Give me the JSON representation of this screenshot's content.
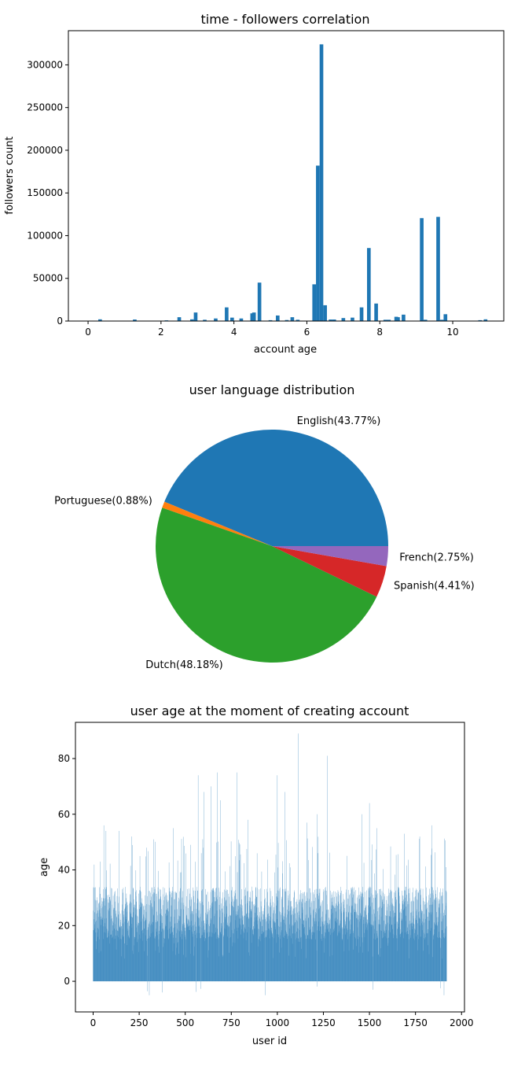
{
  "colors": {
    "bar": "#1f77b4",
    "axis": "#000000",
    "background": "#ffffff"
  },
  "chart_data": [
    {
      "type": "bar",
      "title": "time - followers correlation",
      "xlabel": "account age",
      "ylabel": "followers count",
      "xlim": [
        -0.54,
        11.4
      ],
      "ylim": [
        0,
        340000
      ],
      "xticks": [
        0,
        2,
        4,
        6,
        8,
        10
      ],
      "yticks": [
        0,
        50000,
        100000,
        150000,
        200000,
        250000,
        300000
      ],
      "bar_width": 0.1,
      "x": [
        0.33,
        1.28,
        2.15,
        2.5,
        2.85,
        2.95,
        3.2,
        3.5,
        3.8,
        3.95,
        4.2,
        4.5,
        4.55,
        4.7,
        5.0,
        5.2,
        5.45,
        5.6,
        5.75,
        6.2,
        6.3,
        6.4,
        6.5,
        6.65,
        6.75,
        7.0,
        7.25,
        7.5,
        7.7,
        7.9,
        8.15,
        8.25,
        8.45,
        8.5,
        8.65,
        9.15,
        9.25,
        9.6,
        9.7,
        9.8,
        10.75,
        10.9
      ],
      "values": [
        2000,
        1800,
        800,
        4500,
        2000,
        10000,
        1500,
        3000,
        16000,
        4000,
        3000,
        9000,
        10000,
        45000,
        1000,
        6500,
        1200,
        4500,
        1500,
        43000,
        182000,
        324000,
        18500,
        1800,
        1800,
        3500,
        4000,
        16000,
        85500,
        20500,
        1500,
        1500,
        5000,
        4500,
        7500,
        120500,
        1500,
        122000,
        1500,
        8000,
        1000,
        2000
      ]
    },
    {
      "type": "pie",
      "title": "user language distribution",
      "slices": [
        {
          "label": "English(43.77%)",
          "value": 43.77,
          "color": "#1f77b4"
        },
        {
          "label": "Portuguese(0.88%)",
          "value": 0.88,
          "color": "#ff7f0e"
        },
        {
          "label": "Dutch(48.18%)",
          "value": 48.18,
          "color": "#2ca02c"
        },
        {
          "label": "Spanish(4.41%)",
          "value": 4.41,
          "color": "#d62728"
        },
        {
          "label": "French(2.75%)",
          "value": 2.75,
          "color": "#9467bd"
        }
      ]
    },
    {
      "type": "bar",
      "title": "user age at the moment of creating account",
      "xlabel": "user id",
      "ylabel": "age",
      "xlim": [
        -96,
        2016
      ],
      "ylim": [
        -11,
        93
      ],
      "xticks": [
        0,
        250,
        500,
        750,
        1000,
        1250,
        1500,
        1750,
        2000
      ],
      "yticks": [
        0,
        20,
        40,
        60,
        80
      ],
      "count": 1920,
      "generator": {
        "seed": 9137,
        "lo": 15,
        "hi": 34,
        "outlier_rate": 0.035,
        "negative_rate": 0.002
      },
      "highlights": [
        {
          "x": 40,
          "value": 43
        },
        {
          "x": 58,
          "value": 56
        },
        {
          "x": 70,
          "value": 54
        },
        {
          "x": 140,
          "value": 54
        },
        {
          "x": 210,
          "value": 52
        },
        {
          "x": 290,
          "value": 48
        },
        {
          "x": 305,
          "value": -5
        },
        {
          "x": 330,
          "value": 51
        },
        {
          "x": 375,
          "value": -4
        },
        {
          "x": 435,
          "value": 55
        },
        {
          "x": 530,
          "value": 49
        },
        {
          "x": 570,
          "value": 74
        },
        {
          "x": 600,
          "value": 68
        },
        {
          "x": 640,
          "value": 70
        },
        {
          "x": 675,
          "value": 75
        },
        {
          "x": 690,
          "value": 65
        },
        {
          "x": 780,
          "value": 75
        },
        {
          "x": 840,
          "value": 58
        },
        {
          "x": 935,
          "value": -5
        },
        {
          "x": 1000,
          "value": 74
        },
        {
          "x": 1040,
          "value": 68
        },
        {
          "x": 1115,
          "value": 89
        },
        {
          "x": 1160,
          "value": 57
        },
        {
          "x": 1215,
          "value": 60
        },
        {
          "x": 1270,
          "value": 81
        },
        {
          "x": 1460,
          "value": 60
        },
        {
          "x": 1500,
          "value": 64
        },
        {
          "x": 1540,
          "value": 55
        },
        {
          "x": 1690,
          "value": 53
        },
        {
          "x": 1840,
          "value": 56
        },
        {
          "x": 1905,
          "value": -5
        },
        {
          "x": 1915,
          "value": 41
        }
      ]
    }
  ]
}
